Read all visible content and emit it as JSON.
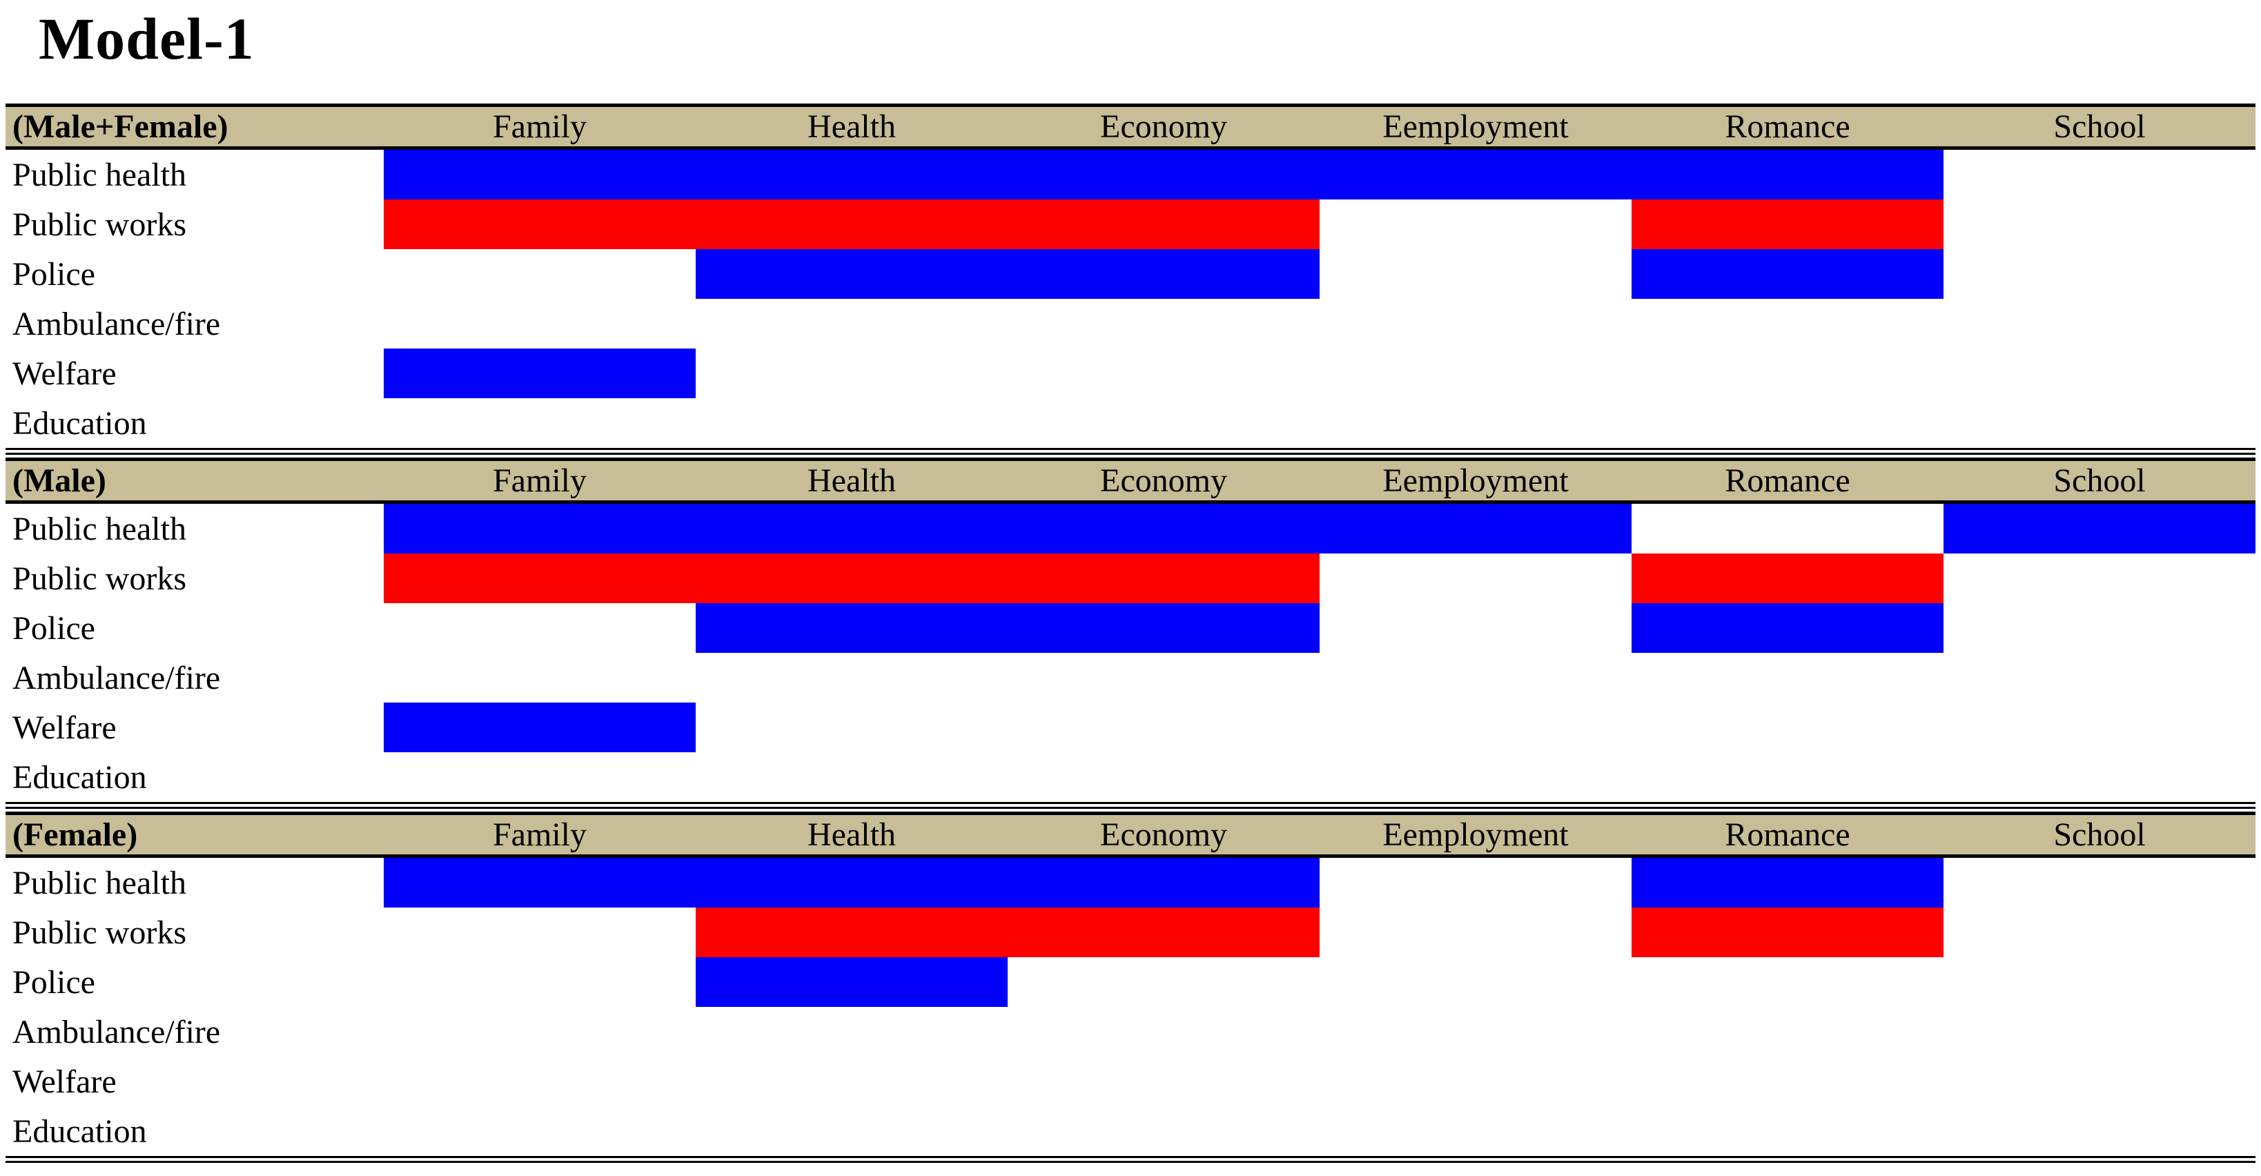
{
  "chart_data": {
    "type": "heatmap",
    "title": "Model-1",
    "columns": [
      "Family",
      "Health",
      "Economy",
      "Eemployment",
      "Romance",
      "School"
    ],
    "rows": [
      "Public health",
      "Public works",
      "Police",
      "Ambulance/fire",
      "Welfare",
      "Education"
    ],
    "cell_colors": {
      "blue": "#0101fa",
      "red": "#fb0100",
      "none": "#ffffff"
    },
    "header_bg": "#c7bd96",
    "border_color": "#000000",
    "legend_position": "none",
    "grid": false,
    "panels": [
      {
        "name": "(Male+Female)",
        "matrix": [
          [
            "blue",
            "blue",
            "blue",
            "blue",
            "blue",
            "none"
          ],
          [
            "red",
            "red",
            "red",
            "none",
            "red",
            "none"
          ],
          [
            "none",
            "blue",
            "blue",
            "none",
            "blue",
            "none"
          ],
          [
            "none",
            "none",
            "none",
            "none",
            "none",
            "none"
          ],
          [
            "blue",
            "none",
            "none",
            "none",
            "none",
            "none"
          ],
          [
            "none",
            "none",
            "none",
            "none",
            "none",
            "none"
          ]
        ]
      },
      {
        "name": "(Male)",
        "matrix": [
          [
            "blue",
            "blue",
            "blue",
            "blue",
            "none",
            "blue"
          ],
          [
            "red",
            "red",
            "red",
            "none",
            "red",
            "none"
          ],
          [
            "none",
            "blue",
            "blue",
            "none",
            "blue",
            "none"
          ],
          [
            "none",
            "none",
            "none",
            "none",
            "none",
            "none"
          ],
          [
            "blue",
            "none",
            "none",
            "none",
            "none",
            "none"
          ],
          [
            "none",
            "none",
            "none",
            "none",
            "none",
            "none"
          ]
        ]
      },
      {
        "name": "(Female)",
        "matrix": [
          [
            "blue",
            "blue",
            "blue",
            "none",
            "blue",
            "none"
          ],
          [
            "none",
            "red",
            "red",
            "none",
            "red",
            "none"
          ],
          [
            "none",
            "blue",
            "none",
            "none",
            "none",
            "none"
          ],
          [
            "none",
            "none",
            "none",
            "none",
            "none",
            "none"
          ],
          [
            "none",
            "none",
            "none",
            "none",
            "none",
            "none"
          ],
          [
            "none",
            "none",
            "none",
            "none",
            "none",
            "none"
          ]
        ]
      }
    ]
  }
}
